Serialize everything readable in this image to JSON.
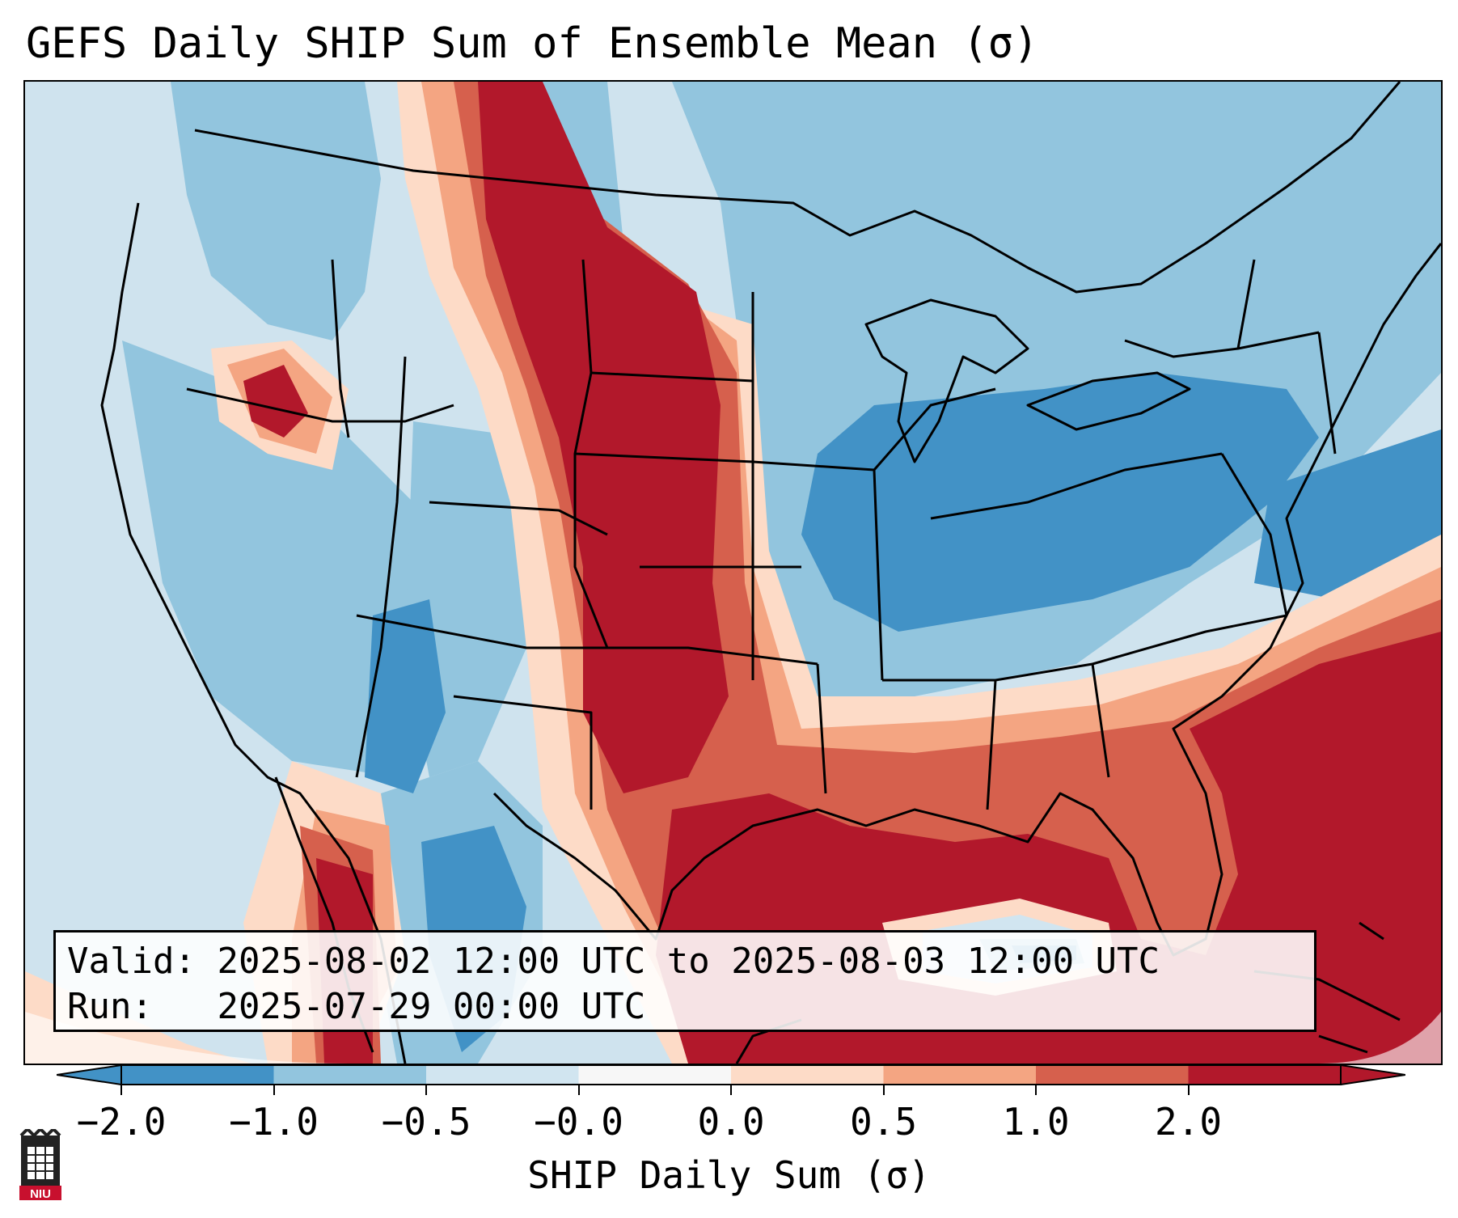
{
  "title": "GEFS Daily SHIP Sum of Ensemble Mean (σ)",
  "info": {
    "valid_label": "Valid:",
    "valid_value": "2025-08-02 12:00 UTC to 2025-08-03 12:00 UTC",
    "run_label": "Run:",
    "run_value": "2025-07-29 00:00 UTC"
  },
  "colorbar": {
    "label": "SHIP Daily Sum (σ)",
    "ticks": [
      "−2.0",
      "−1.0",
      "−0.5",
      "−0.0",
      "0.0",
      "0.5",
      "1.0",
      "2.0"
    ],
    "colors": [
      "#4292c6",
      "#92c5de",
      "#d1e5f0",
      "#f7f7f7",
      "#fddbc7",
      "#f4a582",
      "#d6604d",
      "#b2182b"
    ],
    "extend": "both"
  },
  "logo_text": "NIU",
  "colors": {
    "neg_strong": "#4292c6",
    "neg_mid": "#92c5de",
    "neg_weak": "#d1e5f0",
    "pos_weak": "#fddbc7",
    "pos_mid": "#f4a582",
    "pos_strong": "#d6604d",
    "pos_max": "#b2182b"
  }
}
